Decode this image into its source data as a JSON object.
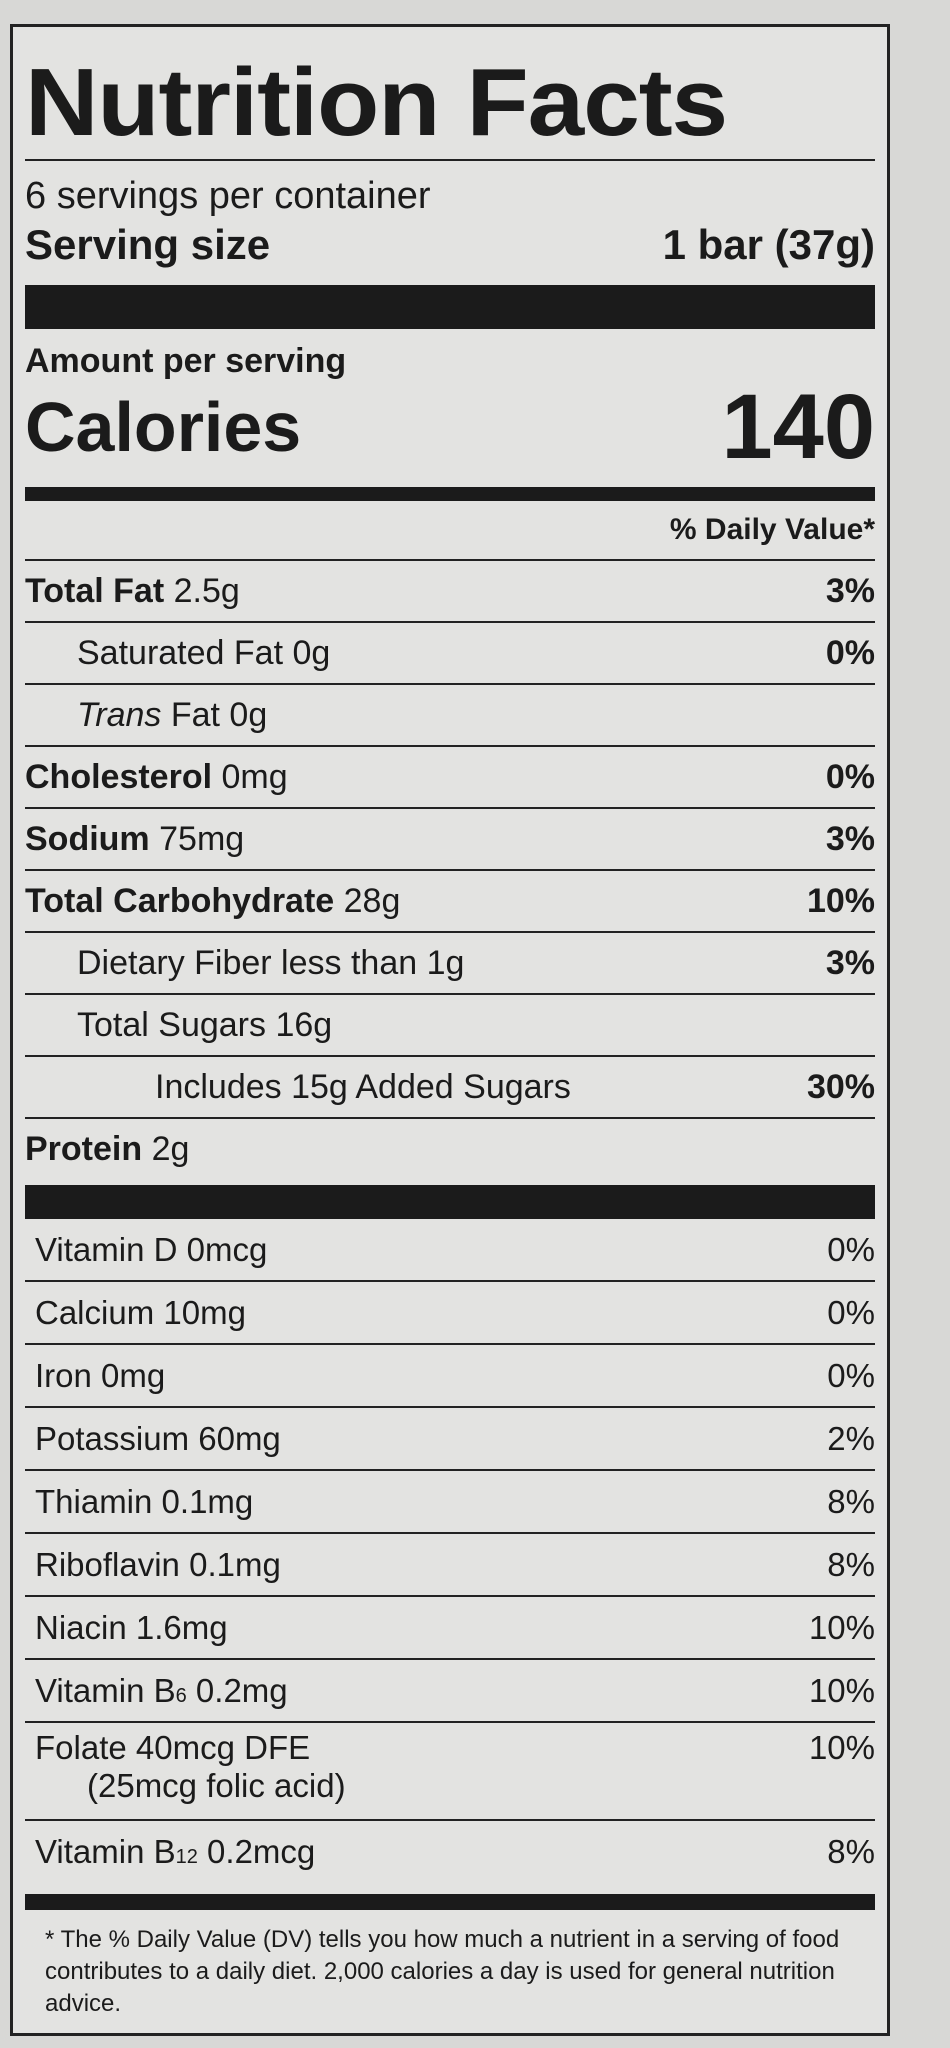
{
  "title": "Nutrition Facts",
  "servings_per_container": "6 servings per container",
  "serving_size": {
    "label": "Serving size",
    "value": "1 bar (37g)"
  },
  "amount_per_serving": "Amount per serving",
  "calories": {
    "label": "Calories",
    "value": "140"
  },
  "daily_value_header": "% Daily Value*",
  "nutrients": [
    {
      "name": "Total Fat",
      "amount": "2.5g",
      "dv": "3%"
    },
    {
      "name": "Saturated Fat",
      "amount": "0g",
      "dv": "0%"
    },
    {
      "name": "Trans",
      "name_suffix": "Fat",
      "amount": "0g",
      "dv": ""
    },
    {
      "name": "Cholesterol",
      "amount": "0mg",
      "dv": "0%"
    },
    {
      "name": "Sodium",
      "amount": "75mg",
      "dv": "3%"
    },
    {
      "name": "Total Carbohydrate",
      "amount": "28g",
      "dv": "10%"
    },
    {
      "name": "Dietary Fiber less than",
      "amount": "1g",
      "dv": "3%"
    },
    {
      "name": "Total Sugars",
      "amount": "16g",
      "dv": ""
    },
    {
      "name": "Includes 15g Added Sugars",
      "amount": "",
      "dv": "30%"
    },
    {
      "name": "Protein",
      "amount": "2g",
      "dv": ""
    }
  ],
  "vitamins": [
    {
      "name": "Vitamin D",
      "amount": "0mcg",
      "dv": "0%"
    },
    {
      "name": "Calcium",
      "amount": "10mg",
      "dv": "0%"
    },
    {
      "name": "Iron",
      "amount": "0mg",
      "dv": "0%"
    },
    {
      "name": "Potassium",
      "amount": "60mg",
      "dv": "2%"
    },
    {
      "name": "Thiamin",
      "amount": "0.1mg",
      "dv": "8%"
    },
    {
      "name": "Riboflavin",
      "amount": "0.1mg",
      "dv": "8%"
    },
    {
      "name": "Niacin",
      "amount": "1.6mg",
      "dv": "10%"
    },
    {
      "name": "Vitamin B",
      "sub": "6",
      "amount": "0.2mg",
      "dv": "10%"
    },
    {
      "name": "Folate",
      "amount": "40mcg DFE",
      "note": "(25mcg folic acid)",
      "dv": "10%"
    },
    {
      "name": "Vitamin B",
      "sub": "12",
      "amount": "0.2mcg",
      "dv": "8%"
    }
  ],
  "footnote": "* The % Daily Value (DV) tells you how much a nutrient in a serving of food contributes to a daily diet. 2,000 calories a day is used for general nutrition advice."
}
